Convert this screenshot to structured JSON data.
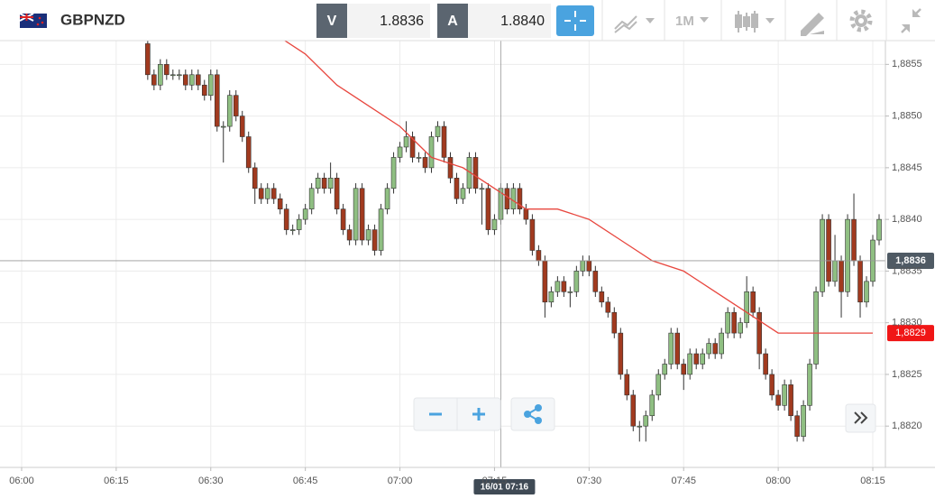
{
  "header": {
    "symbol": "GBPNZD",
    "bid_label": "V",
    "bid": "1.8836",
    "ask_label": "A",
    "ask": "1.8840",
    "timeframe": "1M"
  },
  "chart_data": {
    "type": "candlestick",
    "up_color": "#8fbf82",
    "down_color": "#a13a1f",
    "xlim": [
      "05:57",
      "08:17"
    ],
    "xticks": [
      "06:00",
      "06:15",
      "06:30",
      "06:45",
      "07:00",
      "07:15",
      "07:30",
      "07:45",
      "08:00",
      "08:15"
    ],
    "ylim": [
      1.8816,
      1.88573
    ],
    "yticks": [
      {
        "value": 1.882,
        "label": "1,8820"
      },
      {
        "value": 1.8825,
        "label": "1,8825"
      },
      {
        "value": 1.883,
        "label": "1,8830"
      },
      {
        "value": 1.8835,
        "label": "1,8835"
      },
      {
        "value": 1.884,
        "label": "1,8840"
      },
      {
        "value": 1.8845,
        "label": "1,8845"
      },
      {
        "value": 1.885,
        "label": "1,8850"
      },
      {
        "value": 1.8855,
        "label": "1,8855"
      }
    ],
    "grid": true,
    "x": [
      "06:20",
      "06:21",
      "06:22",
      "06:23",
      "06:24",
      "06:25",
      "06:26",
      "06:27",
      "06:28",
      "06:29",
      "06:30",
      "06:31",
      "06:32",
      "06:33",
      "06:34",
      "06:35",
      "06:36",
      "06:37",
      "06:38",
      "06:39",
      "06:40",
      "06:41",
      "06:42",
      "06:43",
      "06:44",
      "06:45",
      "06:46",
      "06:47",
      "06:48",
      "06:49",
      "06:50",
      "06:51",
      "06:52",
      "06:53",
      "06:54",
      "06:55",
      "06:56",
      "06:57",
      "06:58",
      "06:59",
      "07:00",
      "07:01",
      "07:02",
      "07:03",
      "07:04",
      "07:05",
      "07:06",
      "07:07",
      "07:08",
      "07:09",
      "07:10",
      "07:11",
      "07:12",
      "07:13",
      "07:14",
      "07:15",
      "07:16",
      "07:17",
      "07:18",
      "07:19",
      "07:20",
      "07:21",
      "07:22",
      "07:23",
      "07:24",
      "07:25",
      "07:26",
      "07:27",
      "07:28",
      "07:29",
      "07:30",
      "07:31",
      "07:32",
      "07:33",
      "07:34",
      "07:35",
      "07:36",
      "07:37",
      "07:38",
      "07:39",
      "07:40",
      "07:41",
      "07:42",
      "07:43",
      "07:44",
      "07:45",
      "07:46",
      "07:47",
      "07:48",
      "07:49",
      "07:50",
      "07:51",
      "07:52",
      "07:53",
      "07:54",
      "07:55",
      "07:56",
      "07:57",
      "07:58",
      "07:59",
      "08:00",
      "08:01",
      "08:02",
      "08:03",
      "08:04",
      "08:05",
      "08:06",
      "08:07",
      "08:08",
      "08:09",
      "08:10",
      "08:11",
      "08:12",
      "08:13",
      "08:14",
      "08:15",
      "08:16"
    ],
    "candles": [
      [
        1.8857,
        1.88575,
        1.88535,
        1.8854
      ],
      [
        1.8854,
        1.88545,
        1.88525,
        1.8853
      ],
      [
        1.8853,
        1.88555,
        1.88525,
        1.8855
      ],
      [
        1.8855,
        1.88555,
        1.88535,
        1.8854
      ],
      [
        1.8854,
        1.88545,
        1.88535,
        1.8854
      ],
      [
        1.8854,
        1.88545,
        1.88535,
        1.8854
      ],
      [
        1.8854,
        1.88545,
        1.88525,
        1.8853
      ],
      [
        1.8853,
        1.88545,
        1.88525,
        1.8854
      ],
      [
        1.8854,
        1.88545,
        1.88525,
        1.8853
      ],
      [
        1.8853,
        1.88535,
        1.88515,
        1.8852
      ],
      [
        1.8852,
        1.88545,
        1.88515,
        1.8854
      ],
      [
        1.8854,
        1.88545,
        1.88485,
        1.8849
      ],
      [
        1.8849,
        1.88495,
        1.88455,
        1.8849
      ],
      [
        1.8849,
        1.88525,
        1.88485,
        1.8852
      ],
      [
        1.8852,
        1.88525,
        1.88495,
        1.885
      ],
      [
        1.885,
        1.88505,
        1.88475,
        1.8848
      ],
      [
        1.8848,
        1.88485,
        1.88445,
        1.8845
      ],
      [
        1.8845,
        1.88455,
        1.88415,
        1.8843
      ],
      [
        1.8843,
        1.88435,
        1.88415,
        1.8842
      ],
      [
        1.8842,
        1.88435,
        1.88415,
        1.8843
      ],
      [
        1.8843,
        1.88435,
        1.88415,
        1.8842
      ],
      [
        1.8842,
        1.88425,
        1.88405,
        1.8841
      ],
      [
        1.8841,
        1.88415,
        1.88385,
        1.8839
      ],
      [
        1.8839,
        1.88395,
        1.88385,
        1.8839
      ],
      [
        1.8839,
        1.88405,
        1.88385,
        1.884
      ],
      [
        1.884,
        1.88415,
        1.88395,
        1.8841
      ],
      [
        1.8841,
        1.88435,
        1.88405,
        1.8843
      ],
      [
        1.8843,
        1.88445,
        1.88425,
        1.8844
      ],
      [
        1.8844,
        1.88445,
        1.88425,
        1.8843
      ],
      [
        1.8843,
        1.88455,
        1.88425,
        1.8844
      ],
      [
        1.8844,
        1.88445,
        1.88405,
        1.8841
      ],
      [
        1.8841,
        1.88415,
        1.88385,
        1.8839
      ],
      [
        1.8839,
        1.88395,
        1.88375,
        1.8838
      ],
      [
        1.8838,
        1.88435,
        1.88375,
        1.8843
      ],
      [
        1.8843,
        1.88435,
        1.88375,
        1.8838
      ],
      [
        1.8838,
        1.88395,
        1.88375,
        1.8839
      ],
      [
        1.8839,
        1.88395,
        1.88365,
        1.8837
      ],
      [
        1.8837,
        1.88415,
        1.88365,
        1.8841
      ],
      [
        1.8841,
        1.88435,
        1.88405,
        1.8843
      ],
      [
        1.8843,
        1.88465,
        1.88425,
        1.8846
      ],
      [
        1.8846,
        1.88475,
        1.88455,
        1.8847
      ],
      [
        1.8847,
        1.88495,
        1.88465,
        1.8848
      ],
      [
        1.8848,
        1.88485,
        1.88455,
        1.8846
      ],
      [
        1.8846,
        1.88465,
        1.88455,
        1.8846
      ],
      [
        1.8846,
        1.88465,
        1.88445,
        1.8845
      ],
      [
        1.8845,
        1.88485,
        1.88445,
        1.8848
      ],
      [
        1.8848,
        1.88495,
        1.88475,
        1.8849
      ],
      [
        1.8849,
        1.88495,
        1.88455,
        1.8846
      ],
      [
        1.8846,
        1.88465,
        1.88435,
        1.8844
      ],
      [
        1.8844,
        1.88445,
        1.88415,
        1.8842
      ],
      [
        1.8842,
        1.88435,
        1.88415,
        1.8843
      ],
      [
        1.8843,
        1.88465,
        1.88425,
        1.8846
      ],
      [
        1.8846,
        1.88465,
        1.88425,
        1.8843
      ],
      [
        1.8843,
        1.88435,
        1.88395,
        1.8843
      ],
      [
        1.8843,
        1.88435,
        1.88385,
        1.8839
      ],
      [
        1.8839,
        1.88405,
        1.88385,
        1.884
      ],
      [
        1.884,
        1.88435,
        1.88395,
        1.8843
      ],
      [
        1.8843,
        1.88435,
        1.88405,
        1.8841
      ],
      [
        1.8841,
        1.88435,
        1.88405,
        1.8843
      ],
      [
        1.8843,
        1.88435,
        1.88405,
        1.8841
      ],
      [
        1.8841,
        1.88415,
        1.88395,
        1.884
      ],
      [
        1.884,
        1.88405,
        1.88365,
        1.8837
      ],
      [
        1.8837,
        1.88375,
        1.88355,
        1.8836
      ],
      [
        1.8836,
        1.88365,
        1.88305,
        1.8832
      ],
      [
        1.8832,
        1.88335,
        1.88315,
        1.8833
      ],
      [
        1.8833,
        1.88345,
        1.88325,
        1.8834
      ],
      [
        1.8834,
        1.88345,
        1.88325,
        1.8833
      ],
      [
        1.8833,
        1.88335,
        1.88315,
        1.8833
      ],
      [
        1.8833,
        1.88355,
        1.88325,
        1.8835
      ],
      [
        1.8835,
        1.88365,
        1.88345,
        1.8836
      ],
      [
        1.8836,
        1.88365,
        1.88345,
        1.8835
      ],
      [
        1.8835,
        1.88355,
        1.88325,
        1.8833
      ],
      [
        1.8833,
        1.88335,
        1.88315,
        1.8832
      ],
      [
        1.8832,
        1.88325,
        1.88305,
        1.8831
      ],
      [
        1.8831,
        1.88315,
        1.88285,
        1.8829
      ],
      [
        1.8829,
        1.88295,
        1.88245,
        1.8825
      ],
      [
        1.8825,
        1.88255,
        1.88225,
        1.8823
      ],
      [
        1.8823,
        1.88235,
        1.88195,
        1.882
      ],
      [
        1.882,
        1.88205,
        1.88185,
        1.882
      ],
      [
        1.882,
        1.88215,
        1.88185,
        1.8821
      ],
      [
        1.8821,
        1.88235,
        1.88205,
        1.8823
      ],
      [
        1.8823,
        1.88255,
        1.88225,
        1.8825
      ],
      [
        1.8825,
        1.88265,
        1.88245,
        1.8826
      ],
      [
        1.8826,
        1.88295,
        1.88255,
        1.8829
      ],
      [
        1.8829,
        1.88295,
        1.88255,
        1.8826
      ],
      [
        1.8826,
        1.88265,
        1.88235,
        1.8825
      ],
      [
        1.8825,
        1.88275,
        1.88245,
        1.8827
      ],
      [
        1.8827,
        1.88275,
        1.88255,
        1.8826
      ],
      [
        1.8826,
        1.88275,
        1.88255,
        1.8827
      ],
      [
        1.8827,
        1.88285,
        1.88265,
        1.8828
      ],
      [
        1.8828,
        1.88285,
        1.88265,
        1.8827
      ],
      [
        1.8827,
        1.88295,
        1.88265,
        1.8829
      ],
      [
        1.8829,
        1.88315,
        1.88285,
        1.8831
      ],
      [
        1.8831,
        1.88315,
        1.88285,
        1.8829
      ],
      [
        1.8829,
        1.88305,
        1.88285,
        1.883
      ],
      [
        1.883,
        1.88345,
        1.88295,
        1.8833
      ],
      [
        1.8833,
        1.88335,
        1.88305,
        1.8831
      ],
      [
        1.8831,
        1.88315,
        1.88255,
        1.8827
      ],
      [
        1.8827,
        1.88275,
        1.88245,
        1.8825
      ],
      [
        1.8825,
        1.88255,
        1.88225,
        1.8823
      ],
      [
        1.8823,
        1.88235,
        1.88215,
        1.8822
      ],
      [
        1.8822,
        1.88245,
        1.88215,
        1.8824
      ],
      [
        1.8824,
        1.88245,
        1.88205,
        1.8821
      ],
      [
        1.8821,
        1.88215,
        1.88185,
        1.8819
      ],
      [
        1.8819,
        1.88225,
        1.88185,
        1.8822
      ],
      [
        1.8822,
        1.88265,
        1.88215,
        1.8826
      ],
      [
        1.8826,
        1.88335,
        1.88255,
        1.8833
      ],
      [
        1.8833,
        1.88405,
        1.88325,
        1.884
      ],
      [
        1.884,
        1.88405,
        1.88335,
        1.8834
      ],
      [
        1.8834,
        1.88385,
        1.88335,
        1.8836
      ],
      [
        1.8836,
        1.88365,
        1.88305,
        1.8833
      ],
      [
        1.8833,
        1.88405,
        1.88325,
        1.884
      ],
      [
        1.884,
        1.88425,
        1.88355,
        1.8836
      ],
      [
        1.8836,
        1.88365,
        1.88305,
        1.8832
      ],
      [
        1.8832,
        1.88345,
        1.88315,
        1.8834
      ],
      [
        1.8834,
        1.88385,
        1.88335,
        1.8838
      ],
      [
        1.8838,
        1.88405,
        1.88375,
        1.884
      ]
    ],
    "ma": {
      "color": "#e8473f",
      "x": [
        "06:40",
        "06:45",
        "06:50",
        "06:55",
        "07:00",
        "07:05",
        "07:10",
        "07:15",
        "07:20",
        "07:25",
        "07:30",
        "07:35",
        "07:40",
        "07:45",
        "07:50",
        "07:55",
        "08:00",
        "08:05",
        "08:10",
        "08:15"
      ],
      "values": [
        1.8858,
        1.8856,
        1.8853,
        1.8851,
        1.8849,
        1.8846,
        1.8845,
        1.8843,
        1.8841,
        1.8841,
        1.884,
        1.8838,
        1.8836,
        1.8835,
        1.8833,
        1.8831,
        1.8829,
        1.8829,
        1.8829,
        1.8829
      ]
    },
    "ma_last": {
      "value": 1.8829,
      "label": "1,8829"
    },
    "crosshair": {
      "price": {
        "value": 1.8836,
        "label": "1,8836"
      },
      "time": "16/01 07:16"
    }
  }
}
